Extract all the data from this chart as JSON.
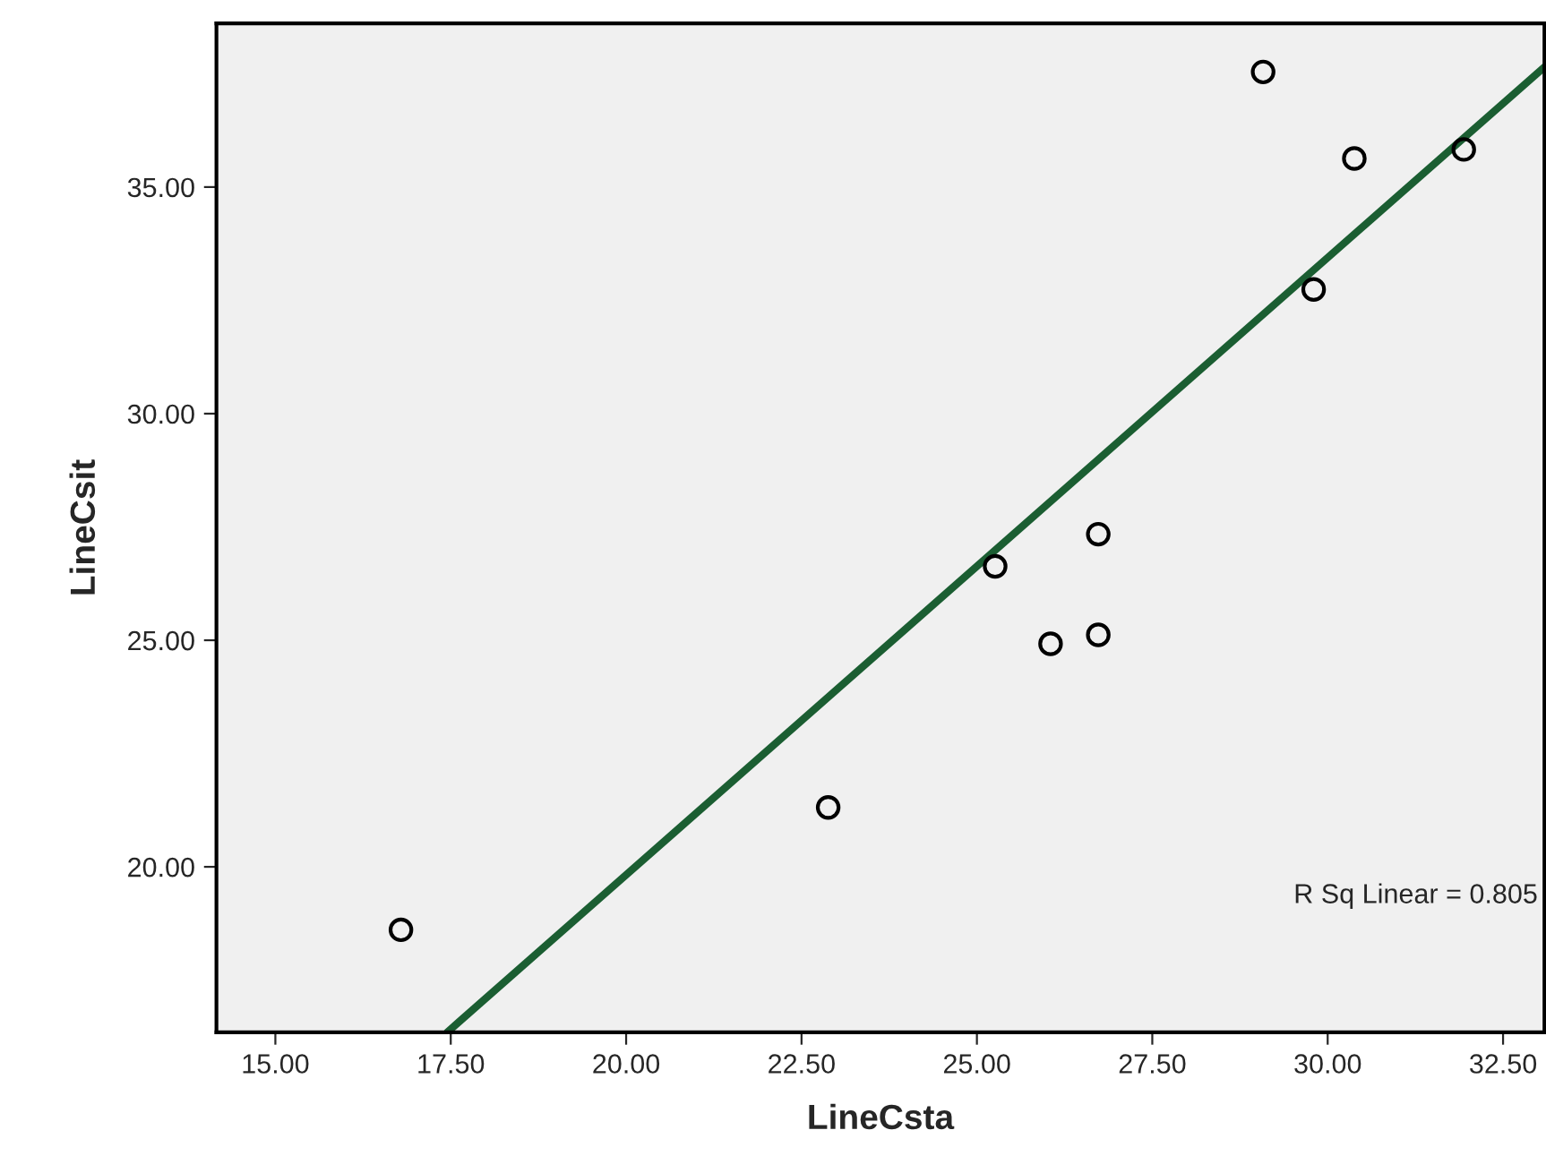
{
  "chart_data": {
    "type": "scatter",
    "xlabel": "LineCsta",
    "ylabel": "LineCsit",
    "xlim": [
      14.16,
      33.09
    ],
    "ylim": [
      16.35,
      38.61
    ],
    "xticks": [
      {
        "value": 15,
        "label": "15.00"
      },
      {
        "value": 17.5,
        "label": "17.50"
      },
      {
        "value": 20,
        "label": "20.00"
      },
      {
        "value": 22.5,
        "label": "22.50"
      },
      {
        "value": 25,
        "label": "25.00"
      },
      {
        "value": 27.5,
        "label": "27.50"
      },
      {
        "value": 30,
        "label": "30.00"
      },
      {
        "value": 32.5,
        "label": "32.50"
      }
    ],
    "yticks": [
      {
        "value": 20,
        "label": "20.00"
      },
      {
        "value": 25,
        "label": "25.00"
      },
      {
        "value": 30,
        "label": "30.00"
      },
      {
        "value": 35,
        "label": "35.00"
      }
    ],
    "grid": false,
    "legend": false,
    "annotations": [
      "R Sq Linear = 0.805"
    ],
    "series": [
      {
        "marker": "circle",
        "color": "#000000",
        "x": [
          16.79,
          22.88,
          25.26,
          26.05,
          26.73,
          26.73,
          29.08,
          29.8,
          30.38,
          31.94
        ],
        "values": [
          18.61,
          21.31,
          26.63,
          24.92,
          25.12,
          27.34,
          37.54,
          32.74,
          35.63,
          35.83
        ]
      },
      {
        "type": "line",
        "marker": "none",
        "color": "#1b5e32",
        "x": [
          17.45,
          33.09
        ],
        "values": [
          16.35,
          37.65
        ]
      }
    ]
  }
}
